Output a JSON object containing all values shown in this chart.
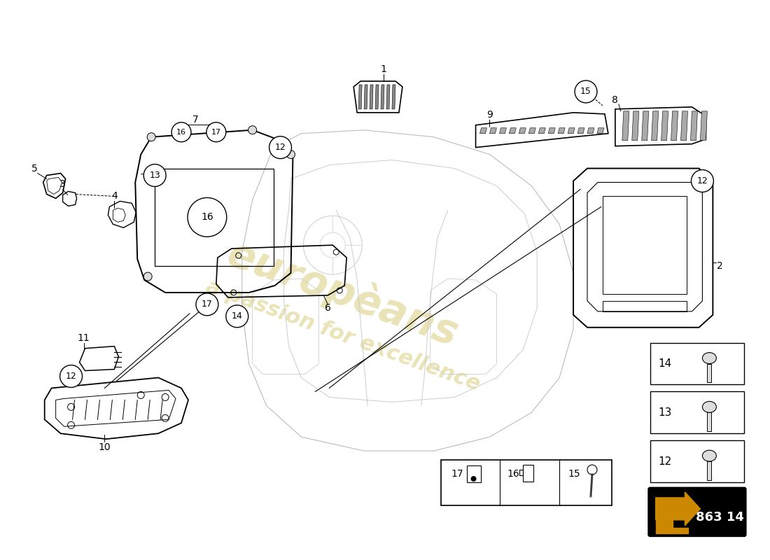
{
  "bg": "#ffffff",
  "wm1": "europèans",
  "wm2": "a passion for excellence",
  "wm_color": "#d4c870",
  "part_number": "863 14",
  "fig_w": 11.0,
  "fig_h": 8.0
}
